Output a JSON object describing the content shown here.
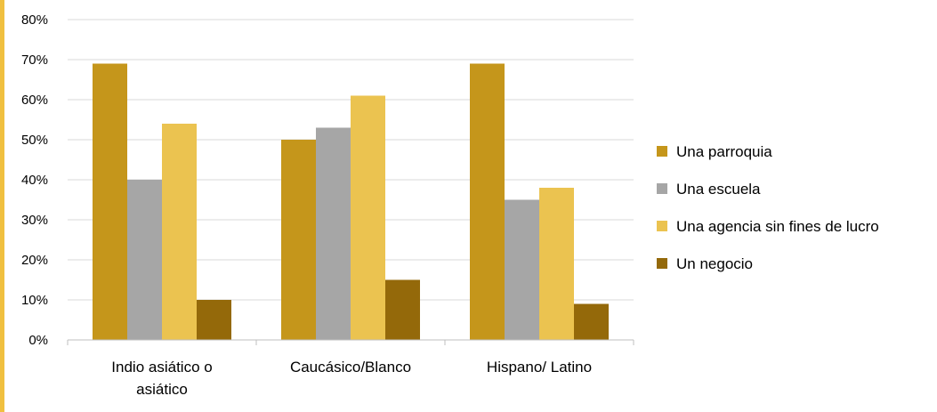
{
  "chart_data": {
    "type": "bar",
    "categories": [
      "Indio asiático o asiático",
      "Caucásico/Blanco",
      "Hispano/ Latino"
    ],
    "category_lines": [
      [
        "Indio asiático o",
        "asiático"
      ],
      [
        "Caucásico/Blanco"
      ],
      [
        "Hispano/ Latino"
      ]
    ],
    "series": [
      {
        "name": "Una parroquia",
        "color": "#c5961b",
        "values": [
          69,
          50,
          69
        ]
      },
      {
        "name": "Una escuela",
        "color": "#a6a6a6",
        "values": [
          40,
          53,
          35
        ]
      },
      {
        "name": "Una agencia sin fines de lucro",
        "color": "#ebc350",
        "values": [
          54,
          61,
          38
        ]
      },
      {
        "name": "Un negocio",
        "color": "#94690a",
        "values": [
          10,
          15,
          9
        ]
      }
    ],
    "ylim": [
      0,
      80
    ],
    "yticks": [
      0,
      10,
      20,
      30,
      40,
      50,
      60,
      70,
      80
    ],
    "ytick_labels": [
      "0%",
      "10%",
      "20%",
      "30%",
      "40%",
      "50%",
      "60%",
      "70%",
      "80%"
    ],
    "grid": true,
    "legend": "right"
  }
}
